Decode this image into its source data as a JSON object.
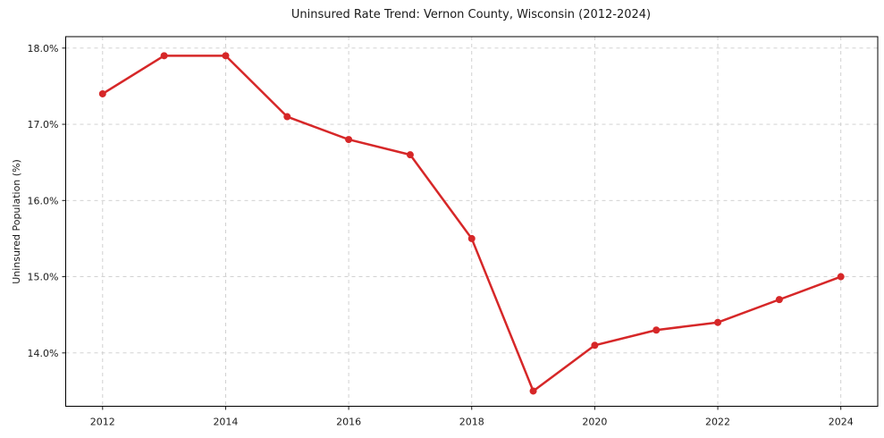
{
  "chart_data": {
    "type": "line",
    "title": "Uninsured Rate Trend: Vernon County, Wisconsin (2012-2024)",
    "xlabel": "",
    "ylabel": "Uninsured Population (%)",
    "x": [
      2012,
      2013,
      2014,
      2015,
      2016,
      2017,
      2018,
      2019,
      2020,
      2021,
      2022,
      2023,
      2024
    ],
    "series": [
      {
        "name": "Uninsured rate",
        "values": [
          17.4,
          17.9,
          17.9,
          17.1,
          16.8,
          16.6,
          15.5,
          13.5,
          14.1,
          14.3,
          14.4,
          14.7,
          15.0
        ]
      }
    ],
    "xlim": [
      2011.4,
      2024.6
    ],
    "ylim": [
      13.3,
      18.15
    ],
    "xticks": {
      "values": [
        2012,
        2014,
        2016,
        2018,
        2020,
        2022,
        2024
      ],
      "labels": [
        "2012",
        "2014",
        "2016",
        "2018",
        "2020",
        "2022",
        "2024"
      ]
    },
    "yticks": {
      "values": [
        14,
        15,
        16,
        17,
        18
      ],
      "labels": [
        "14.0%",
        "15.0%",
        "16.0%",
        "17.0%",
        "18.0%"
      ]
    },
    "grid": true,
    "legend": null,
    "line_color": "#d62728",
    "grid_color": "#cccccc",
    "marker": "circle",
    "marker_size": 4
  }
}
